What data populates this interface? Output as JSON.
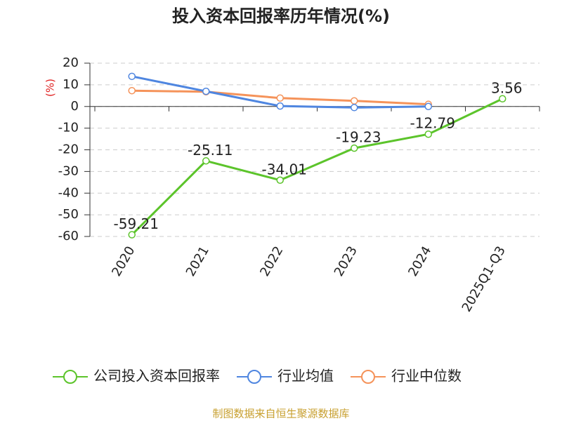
{
  "chart_data": {
    "type": "line",
    "title": "投入资本回报率历年情况(%)",
    "y_label": "(%)",
    "categories": [
      "2020",
      "2021",
      "2022",
      "2023",
      "2024",
      "2025Q1-Q3"
    ],
    "series": [
      {
        "name": "公司投入资本回报率",
        "color": "#5cc42b",
        "values": [
          -59.21,
          -25.11,
          -34.01,
          -19.23,
          -12.79,
          3.56
        ],
        "show_labels": true
      },
      {
        "name": "行业均值",
        "color": "#4f86e0",
        "values": [
          13.9,
          7.0,
          0.2,
          -0.5,
          0.0,
          null
        ]
      },
      {
        "name": "行业中位数",
        "color": "#f5935a",
        "values": [
          7.3,
          6.8,
          3.9,
          2.6,
          1.0,
          null
        ]
      }
    ],
    "ylim": [
      -60,
      20
    ],
    "yticks": [
      20,
      10,
      0,
      -10,
      -20,
      -30,
      -40,
      -50,
      -60
    ],
    "grid": true,
    "legend": "bottom",
    "source": "制图数据来自恒生聚源数据库"
  }
}
